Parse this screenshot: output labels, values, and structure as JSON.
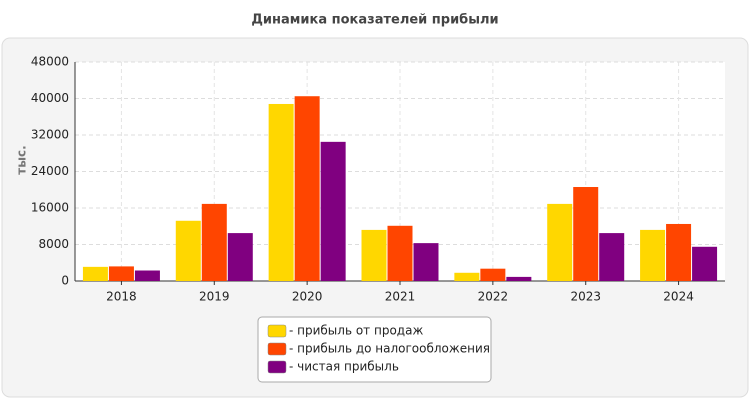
{
  "chart_data": {
    "type": "bar",
    "title": "Динамика показателей прибыли",
    "y_label": "тыс.",
    "categories": [
      "2018",
      "2019",
      "2020",
      "2021",
      "2022",
      "2023",
      "2024"
    ],
    "series": [
      {
        "name": "- прибыль от продаж",
        "color": "#ffd700",
        "values": [
          3100,
          13200,
          38800,
          11200,
          1800,
          16900,
          11200
        ]
      },
      {
        "name": "- прибыль до налогообложения",
        "color": "#ff4500",
        "values": [
          3200,
          16900,
          40500,
          12100,
          2700,
          20600,
          12500
        ]
      },
      {
        "name": "- чистая прибыль",
        "color": "#800080",
        "values": [
          2300,
          10500,
          30500,
          8300,
          900,
          10500,
          7500
        ]
      }
    ],
    "ylim": [
      0,
      48000
    ],
    "yticks": [
      0,
      8000,
      16000,
      24000,
      32000,
      40000,
      48000
    ],
    "grid": true
  }
}
